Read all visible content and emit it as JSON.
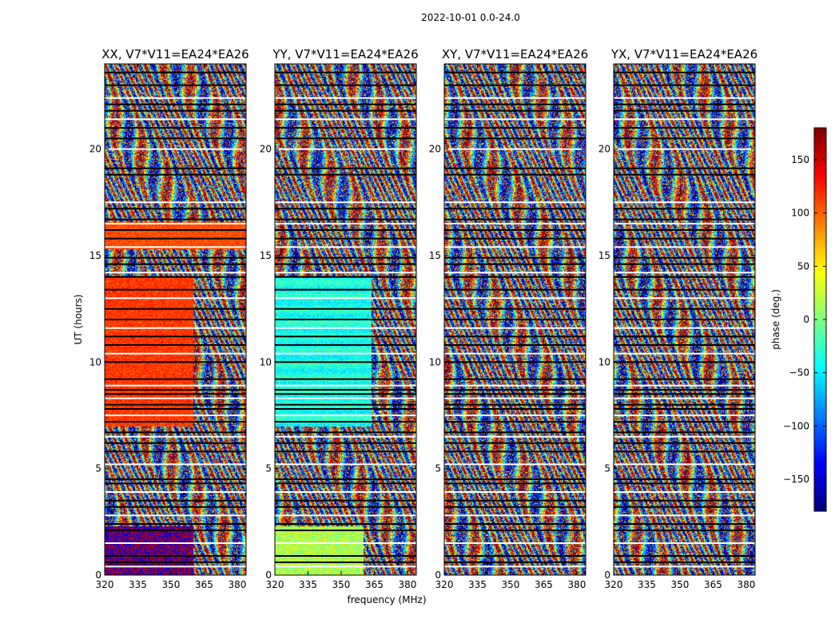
{
  "figure": {
    "suptitle": "2022-10-01 0.0-24.0"
  },
  "chart_data": {
    "type": "heatmap",
    "panels": [
      {
        "title": "XX, V7*V11=EA24*EA26",
        "scheme": "xx"
      },
      {
        "title": "YY, V7*V11=EA24*EA26",
        "scheme": "yy"
      },
      {
        "title": "XY, V7*V11=EA24*EA26",
        "scheme": "cross"
      },
      {
        "title": "YX, V7*V11=EA24*EA26",
        "scheme": "cross"
      }
    ],
    "xlabel": "frequency (MHz)",
    "ylabel": "UT (hours)",
    "xlim": [
      320,
      384
    ],
    "ylim": [
      0,
      24
    ],
    "x_ticks": [
      320,
      335,
      350,
      365,
      380
    ],
    "y_ticks": [
      0,
      5,
      10,
      15,
      20
    ],
    "colorbar": {
      "label": "phase (deg.)",
      "range": [
        -180,
        180
      ],
      "ticks": [
        150,
        100,
        50,
        0,
        -50,
        -100,
        -150
      ],
      "tick_labels": [
        "150",
        "100",
        "50",
        "0",
        "−50",
        "−100",
        "−150"
      ],
      "colormap": "jet"
    },
    "flagged_hours": [
      0.4,
      0.6,
      0.9,
      1.5,
      2.1,
      2.4,
      2.8,
      3.2,
      3.5,
      3.9,
      4.3,
      4.5,
      5.2,
      5.8,
      6.2,
      6.5,
      6.7,
      7.2,
      7.5,
      7.8,
      8.0,
      8.3,
      8.5,
      8.7,
      8.9,
      9.2,
      10.0,
      10.4,
      10.8,
      11.2,
      11.6,
      12.0,
      12.5,
      13.0,
      13.4,
      14.0,
      14.2,
      14.6,
      14.9,
      15.4,
      15.8,
      16.2,
      16.5,
      16.7,
      17.2,
      17.5,
      18.8,
      19.1,
      20.0,
      20.5,
      21.0,
      21.4,
      21.8,
      22.1,
      22.4,
      23.0,
      23.6
    ]
  }
}
